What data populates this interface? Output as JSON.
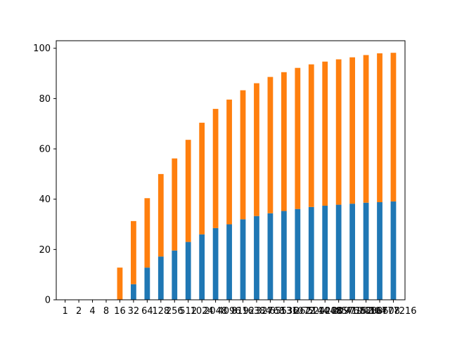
{
  "chart_data": {
    "type": "bar",
    "stacked": true,
    "categories": [
      "1",
      "2",
      "4",
      "8",
      "16",
      "32",
      "64",
      "128",
      "256",
      "512",
      "1024",
      "2048",
      "4096",
      "8192",
      "16384",
      "32768",
      "65536",
      "131072",
      "262144",
      "524288",
      "1048576",
      "2097152",
      "4194304",
      "8388608",
      "16777216"
    ],
    "series": [
      {
        "color": "#1f77b4",
        "values": [
          0,
          0,
          0,
          0,
          0,
          6.2,
          12.8,
          17.2,
          19.6,
          23.0,
          26.0,
          28.5,
          30.0,
          32.0,
          33.3,
          34.4,
          35.3,
          36.1,
          36.9,
          37.4,
          37.8,
          38.2,
          38.6,
          38.8,
          39.1
        ]
      },
      {
        "color": "#ff7f0e",
        "values": [
          0,
          0,
          0,
          0,
          12.8,
          25.1,
          27.6,
          32.8,
          36.6,
          40.6,
          44.4,
          47.4,
          49.6,
          51.3,
          52.8,
          54.2,
          55.2,
          56.1,
          56.7,
          57.3,
          57.8,
          58.2,
          58.7,
          59.2,
          59.1
        ]
      }
    ],
    "yticks": [
      0,
      20,
      40,
      60,
      80,
      100
    ],
    "ylim": [
      0,
      103
    ],
    "grid": false,
    "legend": "none",
    "title": "",
    "xlabel": "",
    "ylabel": ""
  }
}
